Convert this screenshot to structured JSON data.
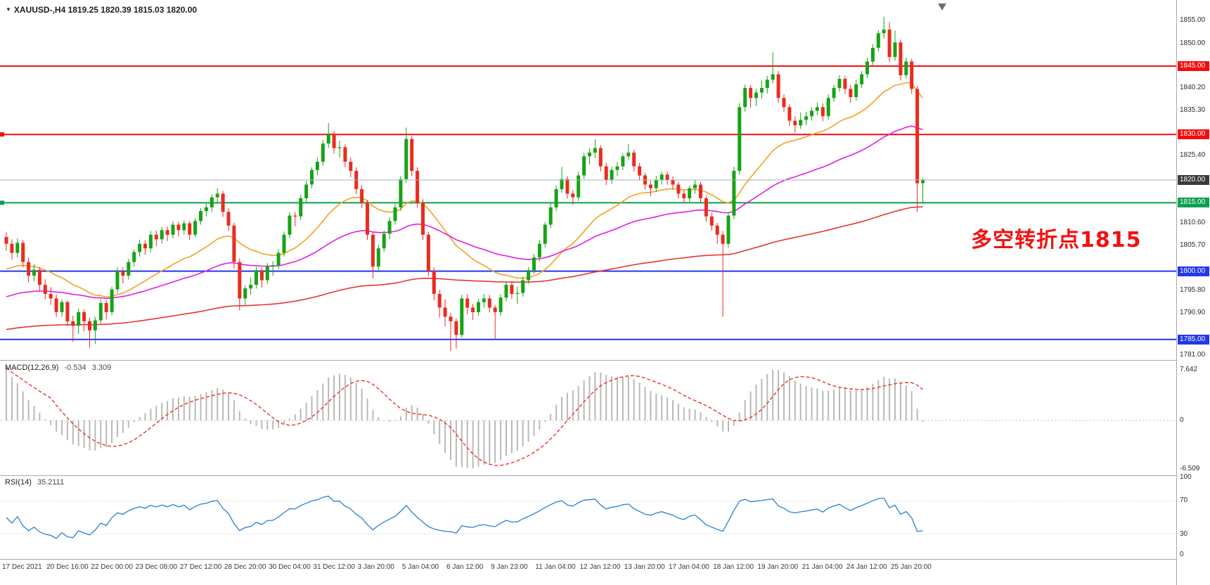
{
  "colors": {
    "background": "#ffffff",
    "candle_up": "#17a317",
    "candle_down": "#ea2c1e",
    "ma_fast": "#f5a021",
    "ma_mid": "#e21ee2",
    "ma_slow": "#e8352c",
    "macd_hist": "#b9b9b9",
    "macd_signal": "#e8352c",
    "rsi_line": "#2a7fd4",
    "annotation": "#f31111"
  },
  "header": {
    "dropdown_icon": "▼",
    "symbol_line": "XAUUSD-,H4  1819.25 1820.39 1815.03 1820.00"
  },
  "annotation": {
    "text": "多空转折点1815"
  },
  "chart_data": {
    "type": "candlestick",
    "symbol": "XAUUSD-",
    "timeframe": "H4",
    "ohlc_current": {
      "open": "1819.25",
      "high": "1820.39",
      "low": "1815.03",
      "close": "1820.00"
    },
    "y_axis_range": [
      1780.5,
      1859.5
    ],
    "candles_per_label": 8,
    "x_labels": [
      "17 Dec 2021",
      "20 Dec 16:00",
      "22 Dec 00:00",
      "23 Dec 08:00",
      "27 Dec 12:00",
      "28 Dec 20:00",
      "30 Dec 04:00",
      "31 Dec 12:00",
      "3 Jan 20:00",
      "5 Jan 04:00",
      "6 Jan 12:00",
      "9 Jan 23:00",
      "11 Jan 04:00",
      "12 Jan 12:00",
      "13 Jan 20:00",
      "17 Jan 04:00",
      "18 Jan 12:00",
      "19 Jan 20:00",
      "21 Jan 04:00",
      "24 Jan 12:00",
      "25 Jan 20:00"
    ],
    "y_ticks": [
      {
        "label": "1855.00",
        "value": 1855
      },
      {
        "label": "1850.00",
        "value": 1850
      },
      {
        "label": "1840.20",
        "value": 1840.2
      },
      {
        "label": "1835.30",
        "value": 1835.3
      },
      {
        "label": "1825.40",
        "value": 1825.4
      },
      {
        "label": "1810.60",
        "value": 1810.6
      },
      {
        "label": "1805.70",
        "value": 1805.7
      },
      {
        "label": "1795.80",
        "value": 1795.8
      },
      {
        "label": "1790.90",
        "value": 1790.9
      },
      {
        "label": "1781.00",
        "value": 1781
      }
    ],
    "h_lines": [
      {
        "label": "1845.00",
        "value": 1845,
        "color": "#f20d0d",
        "width": 2,
        "anchor": false,
        "on_top": false
      },
      {
        "label": "1830.00",
        "value": 1830,
        "color": "#f20d0d",
        "width": 2,
        "anchor": true,
        "on_top": false
      },
      {
        "label": "1820.00",
        "value": 1820,
        "color": "#9cb3c6",
        "label_bg": "#3a3a3a",
        "width": 1,
        "anchor": false,
        "on_top": true
      },
      {
        "label": "1815.00",
        "value": 1815,
        "color": "#0aa04e",
        "width": 2,
        "anchor": true,
        "on_top": false
      },
      {
        "label": "1800.00",
        "value": 1800,
        "color": "#2138e8",
        "width": 2,
        "anchor": false,
        "on_top": false
      },
      {
        "label": "1785.00",
        "value": 1785,
        "color": "#2138e8",
        "width": 2,
        "anchor": false,
        "on_top": false
      }
    ],
    "moving_averages": [
      {
        "name": "fast",
        "period": 24,
        "seed": 1800,
        "color": "#f5a021"
      },
      {
        "name": "mid",
        "period": 60,
        "seed": 1794,
        "color": "#e21ee2"
      },
      {
        "name": "slow",
        "period": 200,
        "seed": 1787,
        "color": "#e8352c"
      }
    ],
    "indicators": {
      "macd": {
        "title": "MACD(12,26,9)",
        "value_main": "-0.534",
        "value_signal": "3.309",
        "fast": 12,
        "slow": 26,
        "signal": 9,
        "seed_offset": 7,
        "scale_top_label": "7.642",
        "scale_zero_label": "0",
        "scale_bottom_label": "-6.509"
      },
      "rsi": {
        "title": "RSI(14)",
        "value": "35.2111",
        "period": 14,
        "levels": [
          70,
          30
        ],
        "scale_labels": [
          "100",
          "70",
          "30",
          "0"
        ]
      }
    },
    "candles": [
      [
        1807.5,
        1808.5,
        1804.5,
        1806
      ],
      [
        1806,
        1807,
        1802.5,
        1804
      ],
      [
        1804,
        1807.2,
        1803,
        1806.2
      ],
      [
        1806.2,
        1806.8,
        1800.8,
        1802
      ],
      [
        1802,
        1803,
        1797.5,
        1799
      ],
      [
        1799,
        1801.5,
        1797.8,
        1800.3
      ],
      [
        1800.3,
        1800.9,
        1795.6,
        1797
      ],
      [
        1797,
        1798.2,
        1793.8,
        1795
      ],
      [
        1795,
        1796.5,
        1792.6,
        1794
      ],
      [
        1794,
        1794.8,
        1789.9,
        1791
      ],
      [
        1791,
        1793.8,
        1790,
        1793.2
      ],
      [
        1793.2,
        1793.6,
        1788,
        1789
      ],
      [
        1789,
        1790.2,
        1784.5,
        1788
      ],
      [
        1788,
        1791.8,
        1786.2,
        1791
      ],
      [
        1791,
        1791.6,
        1786.8,
        1789
      ],
      [
        1789,
        1789.8,
        1783.2,
        1787
      ],
      [
        1787,
        1790,
        1784,
        1789.2
      ],
      [
        1789.2,
        1793.8,
        1788.5,
        1793
      ],
      [
        1793,
        1793.6,
        1789.4,
        1791
      ],
      [
        1791,
        1796.6,
        1790.3,
        1796
      ],
      [
        1796,
        1800.8,
        1795.2,
        1800
      ],
      [
        1800,
        1800.9,
        1797.3,
        1799
      ],
      [
        1799,
        1802.7,
        1798.2,
        1802
      ],
      [
        1802,
        1804.8,
        1801,
        1804.2
      ],
      [
        1804.2,
        1806.9,
        1803.2,
        1806
      ],
      [
        1806,
        1806.8,
        1803.6,
        1805
      ],
      [
        1805,
        1808.8,
        1804.2,
        1808
      ],
      [
        1808,
        1808.9,
        1805.5,
        1807
      ],
      [
        1807,
        1809.7,
        1806,
        1809
      ],
      [
        1809,
        1809.8,
        1806.6,
        1808
      ],
      [
        1808,
        1810.9,
        1807.2,
        1810.2
      ],
      [
        1810.2,
        1810.8,
        1807.6,
        1809
      ],
      [
        1809,
        1811.2,
        1808,
        1810.5
      ],
      [
        1810.5,
        1811,
        1806.8,
        1808
      ],
      [
        1808,
        1811.6,
        1807.4,
        1811
      ],
      [
        1811,
        1813.8,
        1810.2,
        1813.2
      ],
      [
        1813.2,
        1814.9,
        1812,
        1814
      ],
      [
        1814,
        1816.8,
        1813,
        1816.2
      ],
      [
        1816.2,
        1818.2,
        1814.8,
        1817
      ],
      [
        1817,
        1817.6,
        1811.9,
        1813
      ],
      [
        1813,
        1813.8,
        1808.8,
        1810
      ],
      [
        1810,
        1810.6,
        1800.6,
        1802
      ],
      [
        1802,
        1802.8,
        1791.4,
        1794
      ],
      [
        1794,
        1796.9,
        1792.6,
        1796.2
      ],
      [
        1796.2,
        1798.6,
        1794.8,
        1797
      ],
      [
        1797,
        1800.9,
        1796.2,
        1800.2
      ],
      [
        1800.2,
        1800.8,
        1796.4,
        1798
      ],
      [
        1798,
        1801.8,
        1797.2,
        1801
      ],
      [
        1801,
        1802.2,
        1799,
        1801.3
      ],
      [
        1801.3,
        1804.8,
        1800.4,
        1804
      ],
      [
        1804,
        1808.7,
        1803.2,
        1808
      ],
      [
        1808,
        1812.9,
        1807.2,
        1812.2
      ],
      [
        1812.2,
        1813,
        1809.8,
        1812
      ],
      [
        1812,
        1816.8,
        1811.2,
        1816
      ],
      [
        1816,
        1819.8,
        1815,
        1819
      ],
      [
        1819,
        1822.8,
        1818.2,
        1822.2
      ],
      [
        1822.2,
        1824.9,
        1821,
        1824
      ],
      [
        1824,
        1828.8,
        1823.2,
        1828
      ],
      [
        1828,
        1832.5,
        1827,
        1830.2
      ],
      [
        1830.2,
        1830.8,
        1825.8,
        1827
      ],
      [
        1827,
        1828.6,
        1824.9,
        1827.2
      ],
      [
        1827.2,
        1827.8,
        1822.8,
        1824
      ],
      [
        1824,
        1824.9,
        1820.6,
        1822
      ],
      [
        1822,
        1822.8,
        1816.9,
        1818
      ],
      [
        1818,
        1818.9,
        1813.8,
        1815
      ],
      [
        1815,
        1815.6,
        1806.8,
        1808
      ],
      [
        1808,
        1808.6,
        1798.4,
        1801
      ],
      [
        1801,
        1805.8,
        1800.2,
        1805
      ],
      [
        1805,
        1808.9,
        1804.2,
        1808.2
      ],
      [
        1808.2,
        1811.8,
        1807,
        1811
      ],
      [
        1811,
        1814.8,
        1810.2,
        1814
      ],
      [
        1814,
        1820.9,
        1813.2,
        1820.2
      ],
      [
        1820.2,
        1831.5,
        1819.4,
        1829
      ],
      [
        1829,
        1829.6,
        1820.8,
        1822
      ],
      [
        1822,
        1822.8,
        1813.9,
        1815
      ],
      [
        1815,
        1815.8,
        1806.8,
        1808
      ],
      [
        1808,
        1808.6,
        1798.9,
        1800
      ],
      [
        1800,
        1800.8,
        1793.6,
        1795
      ],
      [
        1795,
        1795.9,
        1789.8,
        1792
      ],
      [
        1792,
        1793.8,
        1787.9,
        1790
      ],
      [
        1790,
        1790.8,
        1782.5,
        1789
      ],
      [
        1789,
        1789.6,
        1783,
        1786
      ],
      [
        1786,
        1794.8,
        1785.4,
        1794
      ],
      [
        1794,
        1794.9,
        1790.5,
        1792
      ],
      [
        1792,
        1792.8,
        1789.3,
        1791
      ],
      [
        1791,
        1793.9,
        1790.2,
        1793.2
      ],
      [
        1793.2,
        1795,
        1792,
        1794
      ],
      [
        1794,
        1794.8,
        1790.9,
        1792
      ],
      [
        1792,
        1792.6,
        1785.2,
        1791
      ],
      [
        1791,
        1794.9,
        1790.2,
        1794.2
      ],
      [
        1794.2,
        1797.8,
        1793.4,
        1797
      ],
      [
        1797,
        1797.6,
        1793.9,
        1795
      ],
      [
        1795,
        1796.6,
        1792.8,
        1795.2
      ],
      [
        1795.2,
        1798.8,
        1794.4,
        1798
      ],
      [
        1798,
        1800.9,
        1797.2,
        1800.2
      ],
      [
        1800.2,
        1803.8,
        1799.4,
        1803
      ],
      [
        1803,
        1806.9,
        1802.2,
        1806
      ],
      [
        1806,
        1810.8,
        1805.2,
        1810.2
      ],
      [
        1810.2,
        1814.9,
        1809.4,
        1814
      ],
      [
        1814,
        1818.8,
        1813.2,
        1818
      ],
      [
        1818,
        1822.9,
        1817.2,
        1820.2
      ],
      [
        1820.2,
        1820.8,
        1815.9,
        1817
      ],
      [
        1817,
        1817.8,
        1814.6,
        1816.2
      ],
      [
        1816.2,
        1821.8,
        1815.4,
        1821
      ],
      [
        1821,
        1825.9,
        1820.2,
        1825.2
      ],
      [
        1825.2,
        1827,
        1823.4,
        1826
      ],
      [
        1826,
        1828.9,
        1824.8,
        1827
      ],
      [
        1827,
        1827.6,
        1821.9,
        1823
      ],
      [
        1823,
        1823.8,
        1818.9,
        1820
      ],
      [
        1820,
        1822.9,
        1819.2,
        1822.2
      ],
      [
        1822.2,
        1824,
        1820.8,
        1823
      ],
      [
        1823,
        1825.8,
        1822.2,
        1825.2
      ],
      [
        1825.2,
        1827.9,
        1824.4,
        1826
      ],
      [
        1826,
        1826.6,
        1821.9,
        1823
      ],
      [
        1823,
        1823.8,
        1819.9,
        1821
      ],
      [
        1821,
        1821.6,
        1817.9,
        1819
      ],
      [
        1819,
        1819.8,
        1816.4,
        1818.2
      ],
      [
        1818.2,
        1820.9,
        1817.4,
        1820
      ],
      [
        1820,
        1821.8,
        1819,
        1821.2
      ],
      [
        1821.2,
        1821.8,
        1818.9,
        1820
      ],
      [
        1820,
        1820.8,
        1817.9,
        1819
      ],
      [
        1819,
        1819.6,
        1815.9,
        1817
      ],
      [
        1817,
        1817.8,
        1814.9,
        1816
      ],
      [
        1816,
        1818.8,
        1815.2,
        1818.2
      ],
      [
        1818.2,
        1819.9,
        1817,
        1819
      ],
      [
        1819,
        1819.6,
        1814.9,
        1816
      ],
      [
        1816,
        1816.6,
        1810.9,
        1812
      ],
      [
        1812,
        1812.8,
        1808.9,
        1810
      ],
      [
        1810,
        1810.6,
        1805.9,
        1808
      ],
      [
        1808,
        1808.8,
        1790,
        1806
      ],
      [
        1806,
        1812.8,
        1805.2,
        1812.2
      ],
      [
        1812.2,
        1822.9,
        1811.4,
        1822
      ],
      [
        1822,
        1836.9,
        1821.2,
        1836
      ],
      [
        1836,
        1840.9,
        1835,
        1840.2
      ],
      [
        1840.2,
        1840.8,
        1835.9,
        1838
      ],
      [
        1838,
        1840,
        1836.2,
        1839.2
      ],
      [
        1839.2,
        1841.8,
        1837.9,
        1840.2
      ],
      [
        1840.2,
        1842.9,
        1839,
        1842
      ],
      [
        1842,
        1848,
        1841.2,
        1843.2
      ],
      [
        1843.2,
        1843.9,
        1836.9,
        1838
      ],
      [
        1838,
        1838.8,
        1834.9,
        1836
      ],
      [
        1836,
        1836.6,
        1831.9,
        1833
      ],
      [
        1833,
        1834,
        1830.4,
        1832
      ],
      [
        1832,
        1834.8,
        1831.2,
        1833.2
      ],
      [
        1833.2,
        1835,
        1832,
        1834
      ],
      [
        1834,
        1836,
        1833,
        1835.2
      ],
      [
        1835.2,
        1837,
        1834.2,
        1836
      ],
      [
        1836,
        1836.8,
        1832.9,
        1834
      ],
      [
        1834,
        1838.8,
        1833.2,
        1838
      ],
      [
        1838,
        1840.9,
        1837.2,
        1840.2
      ],
      [
        1840.2,
        1843,
        1839.4,
        1842.2
      ],
      [
        1842.2,
        1842.8,
        1838.9,
        1840
      ],
      [
        1840,
        1840.8,
        1836.9,
        1838.2
      ],
      [
        1838.2,
        1841.9,
        1837.4,
        1841
      ],
      [
        1841,
        1843.9,
        1840.2,
        1843.2
      ],
      [
        1843.2,
        1846.9,
        1842.4,
        1846
      ],
      [
        1846,
        1849.8,
        1845.2,
        1849
      ],
      [
        1849,
        1852.9,
        1848.2,
        1852.2
      ],
      [
        1852.2,
        1855.8,
        1851,
        1853
      ],
      [
        1853,
        1854.6,
        1845.9,
        1847
      ],
      [
        1847,
        1852.8,
        1846.2,
        1850.2
      ],
      [
        1850.2,
        1850.8,
        1841.9,
        1843
      ],
      [
        1843,
        1846.9,
        1842.2,
        1846
      ],
      [
        1846,
        1846.6,
        1838.9,
        1840
      ],
      [
        1840,
        1840.6,
        1813,
        1819.3
      ],
      [
        1819.3,
        1820.4,
        1815,
        1820
      ]
    ]
  }
}
